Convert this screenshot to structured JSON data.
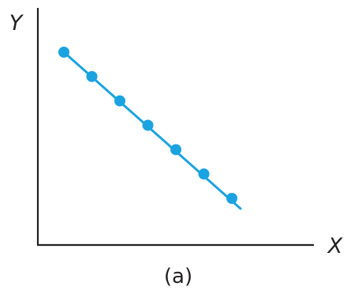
{
  "chart_data": {
    "type": "scatter",
    "title": "",
    "xlabel": "X",
    "ylabel": "Y",
    "caption": "(a)",
    "grid": false,
    "legend": "none",
    "colors": {
      "series": "#1aa3e0",
      "axis": "#231f20"
    },
    "series": [
      {
        "x": [
          1,
          2,
          3,
          4,
          5,
          6,
          7
        ],
        "y": [
          7,
          6,
          5,
          4,
          3,
          2,
          1
        ]
      }
    ],
    "trend_line": true
  }
}
